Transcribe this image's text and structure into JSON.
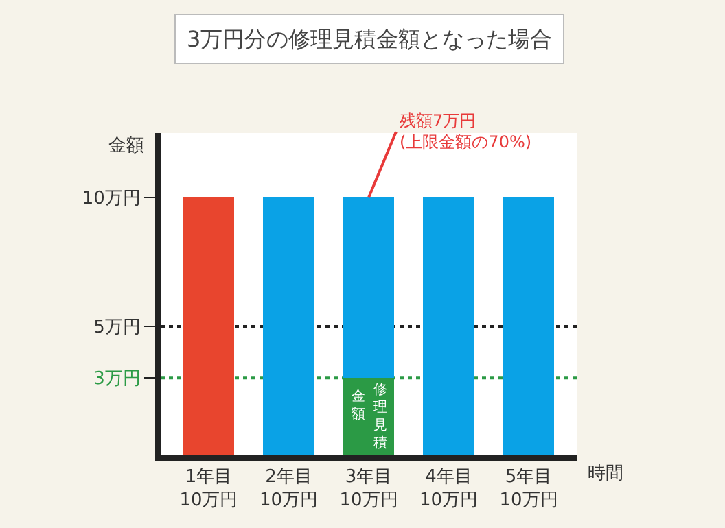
{
  "chart_data": {
    "type": "bar",
    "title": "3万円分の修理見積金額となった場合",
    "xlabel": "時間",
    "ylabel": "金額",
    "categories": [
      "1年目\n10万円",
      "2年目\n10万円",
      "3年目\n10万円",
      "4年目\n10万円",
      "5年目\n10万円"
    ],
    "stacked": true,
    "series": [
      {
        "color": "#2b9a45",
        "values": [
          null,
          null,
          3,
          null,
          null
        ]
      },
      {
        "colors": [
          "#e8452e",
          "#0aa2e6",
          "#0aa2e6",
          "#0aa2e6",
          "#0aa2e6"
        ],
        "values": [
          10,
          10,
          7,
          10,
          10
        ]
      }
    ],
    "ylim": [
      0,
      12.5
    ],
    "yticks": [
      {
        "value": 3,
        "label": "3万円"
      },
      {
        "value": 5,
        "label": "5万円"
      },
      {
        "value": 10,
        "label": "10万円"
      }
    ],
    "ref_lines": [
      {
        "axis": "y",
        "value": 5,
        "color": "#222222",
        "line_style": "dotted"
      },
      {
        "axis": "y",
        "value": 3,
        "color": "#2b9a45",
        "line_style": "dotted"
      }
    ],
    "annotations": [
      {
        "text": "残額7万円\n(上限金額の70%)",
        "x": "3年目\n10万円",
        "y": 10
      },
      "修理見積",
      "金額"
    ],
    "grid": false,
    "legend": false
  }
}
